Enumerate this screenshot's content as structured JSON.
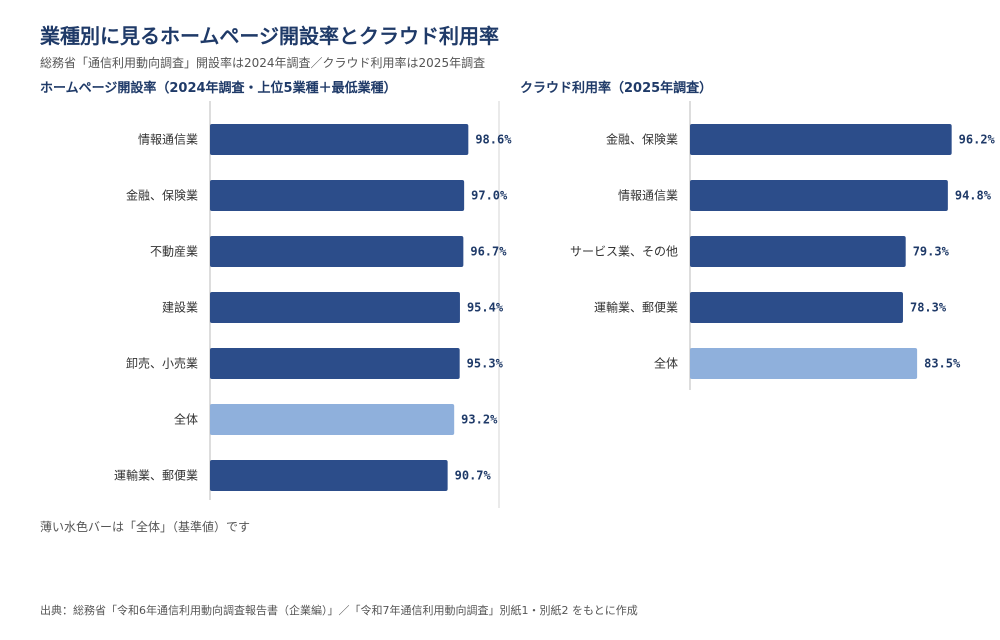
{
  "title": "業種別に見るホームページ開設率とクラウド利用率",
  "subtitle": "総務省「通信利用動向調査」開設率は2024年調査／クラウド利用率は2025年調査",
  "note": "薄い水色バーは「全体」（基準値）です",
  "source": "出典：総務省「令和6年通信利用動向調査報告書（企業編）」／「令和7年通信利用動向調査」別紙1・別紙2 をもとに作成",
  "colors": {
    "bar": "#2c4d8a",
    "highlight": "#8fb0dc",
    "divider": "#d6d6d6"
  },
  "chart_data": [
    {
      "type": "bar",
      "orientation": "horizontal",
      "title": "ホームページ開設率（2024年調査・上位5業種＋最低業種）",
      "categories": [
        "情報通信業",
        "金融、保険業",
        "不動産業",
        "建設業",
        "卸売、小売業",
        "全体",
        "運輸業、郵便業"
      ],
      "values": [
        98.6,
        97.0,
        96.7,
        95.4,
        95.3,
        93.2,
        90.7
      ],
      "value_labels": [
        "98.6%",
        "97.0%",
        "96.7%",
        "95.4%",
        "95.3%",
        "93.2%",
        "90.7%"
      ],
      "highlight": [
        "全体"
      ],
      "unit": "%",
      "grid": false
    },
    {
      "type": "bar",
      "orientation": "horizontal",
      "title": "クラウド利用率（2025年調査）",
      "categories": [
        "金融、保険業",
        "情報通信業",
        "サービス業、その他",
        "運輸業、郵便業",
        "全体"
      ],
      "values": [
        96.2,
        94.8,
        79.3,
        78.3,
        83.5
      ],
      "value_labels": [
        "96.2%",
        "94.8%",
        "79.3%",
        "78.3%",
        "83.5%"
      ],
      "highlight": [
        "全体"
      ],
      "unit": "%",
      "grid": false
    }
  ]
}
